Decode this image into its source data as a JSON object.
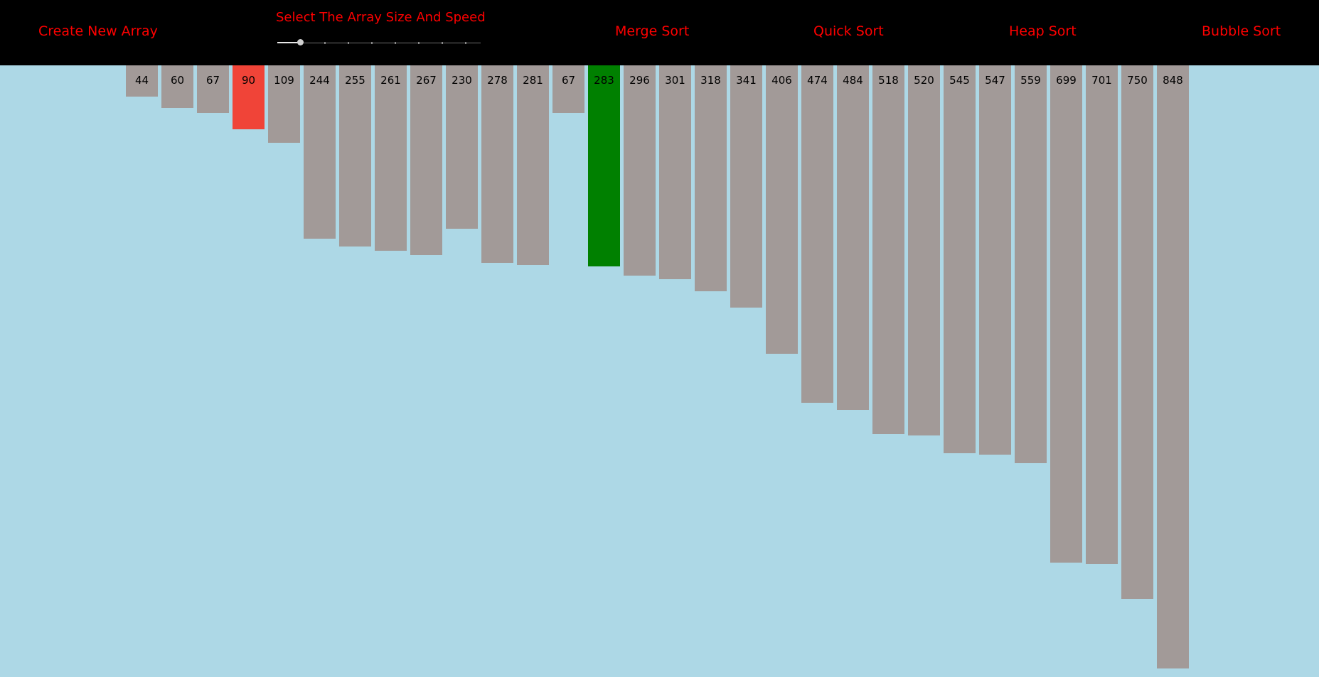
{
  "navbar": {
    "create_label": "Create New Array",
    "slider_label": "Select The Array Size And Speed",
    "slider_value": 0.1,
    "merge_label": "Merge Sort",
    "quick_label": "Quick Sort",
    "heap_label": "Heap Sort",
    "bubble_label": "Bubble Sort"
  },
  "colors": {
    "navbar_bg": "#000000",
    "nav_text": "#ff0000",
    "background": "#add8e6",
    "bar_default": "#a29a98",
    "bar_compare": "#f04438",
    "bar_pivot": "#008000"
  },
  "array": {
    "max_value": 848,
    "bars": [
      {
        "value": 44,
        "label": "44",
        "state": "default"
      },
      {
        "value": 60,
        "label": "60",
        "state": "default"
      },
      {
        "value": 67,
        "label": "67",
        "state": "default"
      },
      {
        "value": 90,
        "label": "90",
        "state": "compare"
      },
      {
        "value": 109,
        "label": "109",
        "state": "default"
      },
      {
        "value": 244,
        "label": "244",
        "state": "default"
      },
      {
        "value": 255,
        "label": "255",
        "state": "default"
      },
      {
        "value": 261,
        "label": "261",
        "state": "default"
      },
      {
        "value": 267,
        "label": "267",
        "state": "default"
      },
      {
        "value": 230,
        "label": "230",
        "state": "default"
      },
      {
        "value": 278,
        "label": "278",
        "state": "default"
      },
      {
        "value": 281,
        "label": "281",
        "state": "default"
      },
      {
        "value": 67,
        "label": "67",
        "state": "default"
      },
      {
        "value": 283,
        "label": "283",
        "state": "pivot"
      },
      {
        "value": 296,
        "label": "296",
        "state": "default"
      },
      {
        "value": 301,
        "label": "301",
        "state": "default"
      },
      {
        "value": 318,
        "label": "318",
        "state": "default"
      },
      {
        "value": 341,
        "label": "341",
        "state": "default"
      },
      {
        "value": 406,
        "label": "406",
        "state": "default"
      },
      {
        "value": 474,
        "label": "474",
        "state": "default"
      },
      {
        "value": 484,
        "label": "484",
        "state": "default"
      },
      {
        "value": 518,
        "label": "518",
        "state": "default"
      },
      {
        "value": 520,
        "label": "520",
        "state": "default"
      },
      {
        "value": 545,
        "label": "545",
        "state": "default"
      },
      {
        "value": 547,
        "label": "547",
        "state": "default"
      },
      {
        "value": 559,
        "label": "559",
        "state": "default"
      },
      {
        "value": 699,
        "label": "699",
        "state": "default"
      },
      {
        "value": 701,
        "label": "701",
        "state": "default"
      },
      {
        "value": 750,
        "label": "750",
        "state": "default"
      },
      {
        "value": 848,
        "label": "848",
        "state": "default"
      }
    ]
  }
}
